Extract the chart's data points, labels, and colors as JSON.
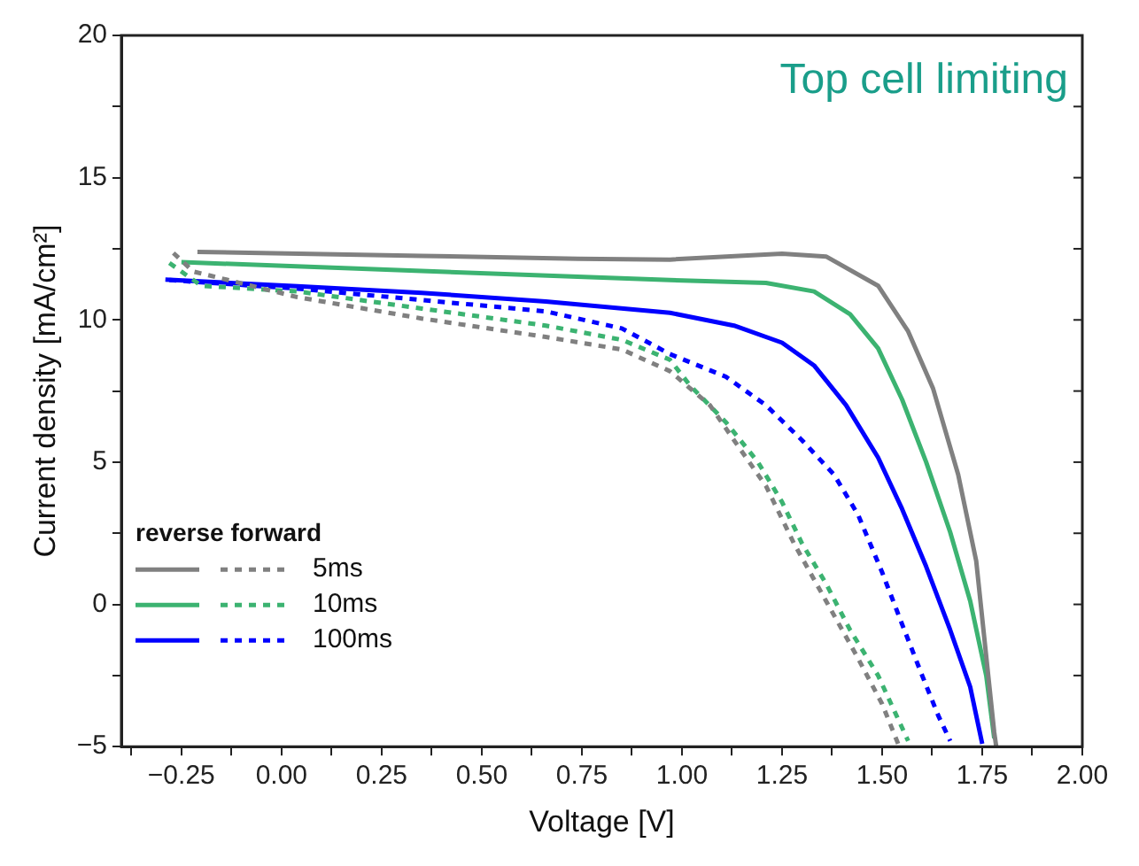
{
  "chart_data": {
    "type": "line",
    "xlabel": "Voltage [V]",
    "ylabel": "Current density [mA/cm²]",
    "legend_title": "reverse forward",
    "legend": "bottom left",
    "grid": false,
    "marker": "none",
    "annotations": [
      "Top cell limiting"
    ],
    "xlim": [
      -0.4,
      2.0
    ],
    "ylim": [
      -5,
      20
    ],
    "xticks": [
      {
        "value": -0.375,
        "label": null
      },
      {
        "value": -0.25,
        "label": "−0.25"
      },
      {
        "value": -0.125,
        "label": null
      },
      {
        "value": 0,
        "label": "0.00"
      },
      {
        "value": 0.125,
        "label": null
      },
      {
        "value": 0.25,
        "label": "0.25"
      },
      {
        "value": 0.375,
        "label": null
      },
      {
        "value": 0.5,
        "label": "0.50"
      },
      {
        "value": 0.625,
        "label": null
      },
      {
        "value": 0.75,
        "label": "0.75"
      },
      {
        "value": 0.875,
        "label": null
      },
      {
        "value": 1,
        "label": "1.00"
      },
      {
        "value": 1.125,
        "label": null
      },
      {
        "value": 1.25,
        "label": "1.25"
      },
      {
        "value": 1.375,
        "label": null
      },
      {
        "value": 1.5,
        "label": "1.50"
      },
      {
        "value": 1.625,
        "label": null
      },
      {
        "value": 1.75,
        "label": "1.75"
      },
      {
        "value": 1.875,
        "label": null
      },
      {
        "value": 2,
        "label": "2.00"
      }
    ],
    "yticks": [
      {
        "value": -5,
        "label": "−5"
      },
      {
        "value": -2.5,
        "label": null
      },
      0,
      {
        "value": 2.5,
        "label": null
      },
      5,
      {
        "value": 7.5,
        "label": null
      },
      10,
      {
        "value": 12.5,
        "label": null
      },
      15,
      {
        "value": 17.5,
        "label": null
      },
      20
    ],
    "series": [
      {
        "name": "5ms",
        "color": "#808080",
        "line_style": "solid",
        "x": [
          -0.21,
          0.35,
          0.74,
          0.97,
          1.25,
          1.36,
          1.49,
          1.565,
          1.627,
          1.69,
          1.735,
          1.78,
          1.785
        ],
        "values": [
          12.39,
          12.25,
          12.15,
          12.12,
          12.33,
          12.23,
          11.2,
          9.6,
          7.6,
          4.56,
          1.53,
          -4.5,
          -5
        ]
      },
      {
        "color": "#808080",
        "line_style": "dashed",
        "x": [
          -0.27,
          -0.22,
          0.04,
          0.35,
          0.66,
          0.85,
          0.97,
          1.07,
          1.14,
          1.21,
          1.28,
          1.36,
          1.44,
          1.5,
          1.54
        ],
        "values": [
          12.35,
          11.7,
          10.8,
          10.05,
          9.4,
          8.96,
          8.2,
          7.0,
          5.57,
          4.16,
          2.14,
          0.12,
          -1.9,
          -3.5,
          -4.9
        ]
      },
      {
        "name": "10ms",
        "color": "#3cb371",
        "line_style": "solid",
        "x": [
          -0.25,
          0.35,
          0.74,
          0.97,
          1.21,
          1.33,
          1.42,
          1.49,
          1.55,
          1.61,
          1.67,
          1.72,
          1.76,
          1.78
        ],
        "values": [
          12.03,
          11.72,
          11.52,
          11.4,
          11.3,
          11.0,
          10.2,
          9.0,
          7.2,
          5.0,
          2.54,
          0.12,
          -2.5,
          -4.7
        ]
      },
      {
        "color": "#3cb371",
        "line_style": "dashed",
        "x": [
          -0.28,
          -0.2,
          0.04,
          0.35,
          0.66,
          0.85,
          0.97,
          1.02,
          1.11,
          1.19,
          1.25,
          1.3,
          1.36,
          1.42,
          1.49,
          1.565
        ],
        "values": [
          12.0,
          11.2,
          11.0,
          10.4,
          9.8,
          9.3,
          8.6,
          7.7,
          6.4,
          5.0,
          3.6,
          2.14,
          0.73,
          -0.9,
          -2.5,
          -4.8
        ]
      },
      {
        "name": "100ms",
        "color": "#0000ff",
        "line_style": "solid",
        "x": [
          -0.29,
          0.04,
          0.35,
          0.66,
          0.97,
          1.13,
          1.25,
          1.33,
          1.41,
          1.49,
          1.55,
          1.61,
          1.67,
          1.72,
          1.75
        ],
        "values": [
          11.42,
          11.18,
          10.95,
          10.65,
          10.25,
          9.8,
          9.2,
          8.4,
          7.0,
          5.16,
          3.35,
          1.33,
          -0.9,
          -2.9,
          -4.9
        ]
      },
      {
        "color": "#0000ff",
        "line_style": "dashed",
        "x": [
          -0.28,
          0.04,
          0.35,
          0.66,
          0.85,
          0.97,
          1.11,
          1.21,
          1.3,
          1.38,
          1.44,
          1.5,
          1.55,
          1.6,
          1.64,
          1.67
        ],
        "values": [
          11.4,
          11.1,
          10.7,
          10.3,
          9.7,
          8.8,
          8.0,
          7.0,
          5.77,
          4.56,
          3.15,
          1.13,
          -0.7,
          -2.5,
          -3.9,
          -4.8
        ]
      }
    ]
  }
}
